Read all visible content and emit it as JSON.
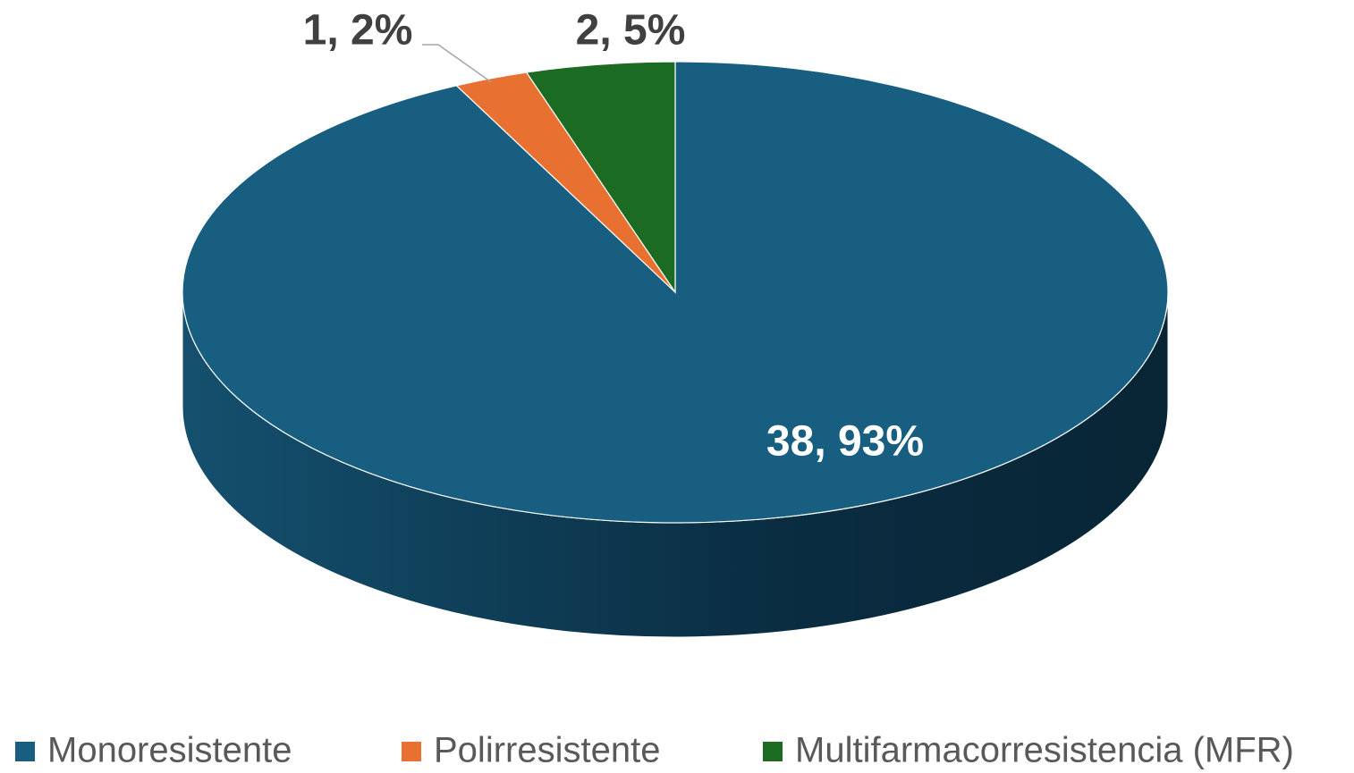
{
  "chart_data": {
    "type": "pie",
    "categories": [
      "Monoresistente",
      "Polirresistente",
      "Multifarmacorresistencia (MFR)"
    ],
    "values": [
      38,
      1,
      2
    ],
    "value_labels": [
      "38, 93%",
      "1, 2%",
      "2, 5%"
    ],
    "colors": [
      "#175e80",
      "#e87030",
      "#1b6b23"
    ],
    "legend": "bottom"
  }
}
